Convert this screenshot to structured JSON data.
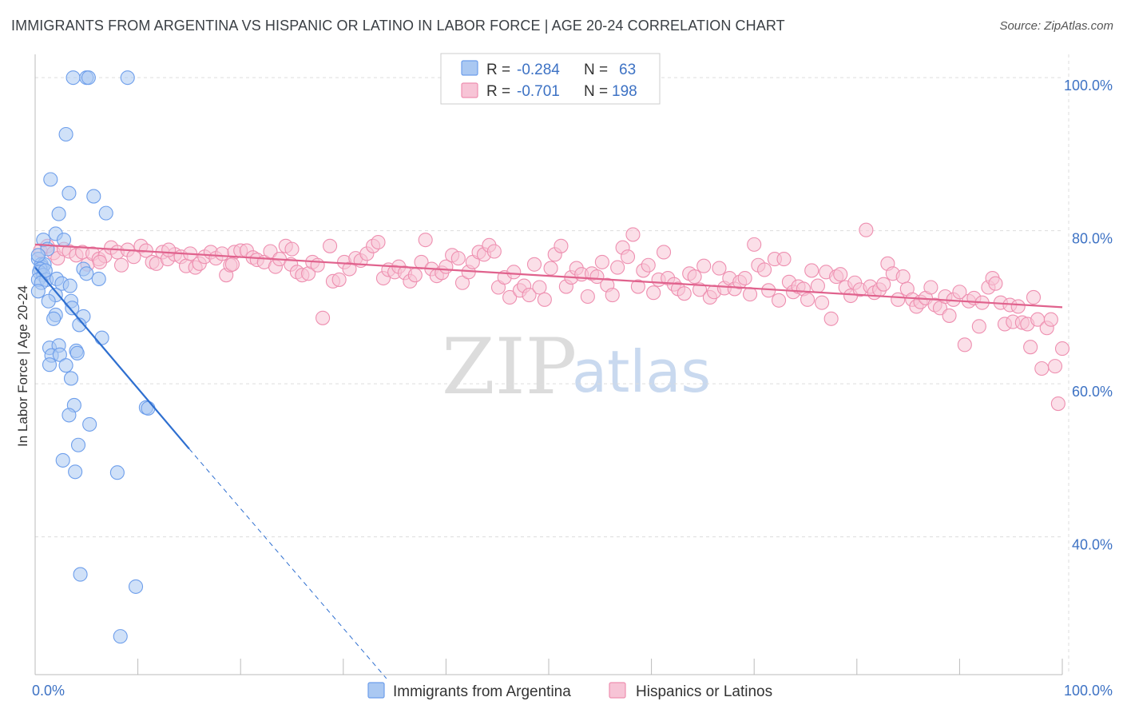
{
  "title": "IMMIGRANTS FROM ARGENTINA VS HISPANIC OR LATINO IN LABOR FORCE | AGE 20-24 CORRELATION CHART",
  "source": "Source: ZipAtlas.com",
  "watermark": {
    "zip": "ZIP",
    "atlas": "atlas"
  },
  "chart_data": {
    "type": "scatter",
    "title": "IMMIGRANTS FROM ARGENTINA VS HISPANIC OR LATINO IN LABOR FORCE | AGE 20-24 CORRELATION CHART",
    "xlabel": "",
    "ylabel": "In Labor Force | Age 20-24",
    "xlim": [
      0,
      100
    ],
    "ylim": [
      22,
      102
    ],
    "x_tick_labels": [
      {
        "value": 0,
        "label": "0.0%"
      },
      {
        "value": 100,
        "label": "100.0%"
      }
    ],
    "y_tick_labels": [
      {
        "value": 100,
        "label": "100.0%"
      },
      {
        "value": 80,
        "label": "80.0%"
      },
      {
        "value": 60,
        "label": "60.0%"
      },
      {
        "value": 40,
        "label": "40.0%"
      }
    ],
    "grid": true,
    "legend_position": "top-center",
    "series": [
      {
        "name": "Immigrants from Argentina",
        "color": "#6d9eeb",
        "fill": "#aac8f2",
        "line_color": "#2e6fd0",
        "R": "-0.284",
        "N": "63",
        "trend": {
          "x": [
            0,
            15
          ],
          "y": [
            75.2,
            51.5
          ],
          "dashed_to": {
            "x": 34.2,
            "y": 21.5
          }
        },
        "points": [
          [
            3.7,
            100
          ],
          [
            5.0,
            100
          ],
          [
            5.2,
            100
          ],
          [
            9.0,
            100
          ],
          [
            3.0,
            92.6
          ],
          [
            1.5,
            86.7
          ],
          [
            3.3,
            84.9
          ],
          [
            5.7,
            84.5
          ],
          [
            2.3,
            82.2
          ],
          [
            6.9,
            82.3
          ],
          [
            2.0,
            79.6
          ],
          [
            0.8,
            78.8
          ],
          [
            2.8,
            78.8
          ],
          [
            1.2,
            77.6
          ],
          [
            0.3,
            76.3
          ],
          [
            0.6,
            75.6
          ],
          [
            0.7,
            75.2
          ],
          [
            0.9,
            75.6
          ],
          [
            0.5,
            75.0
          ],
          [
            0.4,
            74.6
          ],
          [
            0.8,
            74.2
          ],
          [
            0.3,
            73.6
          ],
          [
            1.1,
            73.6
          ],
          [
            2.1,
            73.7
          ],
          [
            4.7,
            75.0
          ],
          [
            5.0,
            74.4
          ],
          [
            0.6,
            73.2
          ],
          [
            2.6,
            73.1
          ],
          [
            6.2,
            73.7
          ],
          [
            0.3,
            72.1
          ],
          [
            3.4,
            72.8
          ],
          [
            2.0,
            71.6
          ],
          [
            1.3,
            70.8
          ],
          [
            3.5,
            70.8
          ],
          [
            3.6,
            69.9
          ],
          [
            2.0,
            69.0
          ],
          [
            4.7,
            68.8
          ],
          [
            1.8,
            68.5
          ],
          [
            4.3,
            67.7
          ],
          [
            6.5,
            66.0
          ],
          [
            1.4,
            64.7
          ],
          [
            2.3,
            65.0
          ],
          [
            4.0,
            64.3
          ],
          [
            4.1,
            64.0
          ],
          [
            1.6,
            63.7
          ],
          [
            2.4,
            63.8
          ],
          [
            1.4,
            62.5
          ],
          [
            3.0,
            62.4
          ],
          [
            3.5,
            60.7
          ],
          [
            3.8,
            57.2
          ],
          [
            10.8,
            56.9
          ],
          [
            11.0,
            56.8
          ],
          [
            3.3,
            55.9
          ],
          [
            5.3,
            54.7
          ],
          [
            4.2,
            52.0
          ],
          [
            2.7,
            50.0
          ],
          [
            3.9,
            48.5
          ],
          [
            8.0,
            48.4
          ],
          [
            4.4,
            35.1
          ],
          [
            9.8,
            33.5
          ],
          [
            8.3,
            27.0
          ],
          [
            0.3,
            76.8
          ],
          [
            1.0,
            74.8
          ]
        ]
      },
      {
        "name": "Hispanics or Latinos",
        "color": "#ee8fb0",
        "fill": "#f7c4d6",
        "line_color": "#e0628d",
        "R": "-0.701",
        "N": "198",
        "trend": {
          "x": [
            0,
            100
          ],
          "y": [
            78.2,
            70.0
          ]
        },
        "points": [
          [
            0.5,
            77.4
          ],
          [
            1.2,
            78.0
          ],
          [
            1.8,
            77.1
          ],
          [
            2.2,
            76.4
          ],
          [
            2.8,
            77.6
          ],
          [
            3.3,
            77.3
          ],
          [
            4.0,
            76.8
          ],
          [
            4.6,
            77.2
          ],
          [
            5.1,
            75.6
          ],
          [
            5.6,
            77.0
          ],
          [
            6.2,
            76.3
          ],
          [
            6.8,
            76.7
          ],
          [
            7.4,
            77.8
          ],
          [
            8.0,
            77.2
          ],
          [
            8.4,
            75.5
          ],
          [
            9.0,
            77.5
          ],
          [
            9.6,
            76.6
          ],
          [
            10.3,
            78.0
          ],
          [
            10.8,
            77.4
          ],
          [
            11.4,
            75.9
          ],
          [
            11.8,
            75.7
          ],
          [
            12.4,
            77.2
          ],
          [
            12.9,
            76.3
          ],
          [
            13.6,
            76.9
          ],
          [
            14.2,
            76.6
          ],
          [
            14.7,
            75.4
          ],
          [
            15.1,
            77.0
          ],
          [
            15.6,
            75.2
          ],
          [
            16.0,
            75.7
          ],
          [
            16.5,
            76.6
          ],
          [
            17.1,
            77.2
          ],
          [
            17.6,
            76.4
          ],
          [
            18.2,
            77.0
          ],
          [
            18.6,
            74.2
          ],
          [
            19.0,
            75.5
          ],
          [
            19.4,
            77.2
          ],
          [
            20.0,
            77.4
          ],
          [
            20.6,
            77.4
          ],
          [
            21.2,
            76.5
          ],
          [
            21.6,
            76.2
          ],
          [
            22.3,
            75.9
          ],
          [
            22.9,
            77.3
          ],
          [
            23.4,
            75.3
          ],
          [
            23.8,
            76.3
          ],
          [
            24.4,
            78.0
          ],
          [
            24.9,
            75.6
          ],
          [
            25.5,
            74.6
          ],
          [
            26.0,
            74.2
          ],
          [
            26.6,
            74.4
          ],
          [
            27.0,
            75.9
          ],
          [
            27.5,
            75.5
          ],
          [
            28.0,
            68.6
          ],
          [
            28.7,
            78.0
          ],
          [
            29.0,
            73.4
          ],
          [
            29.6,
            73.6
          ],
          [
            30.1,
            75.9
          ],
          [
            30.6,
            75.0
          ],
          [
            31.2,
            76.4
          ],
          [
            31.7,
            76.1
          ],
          [
            32.3,
            77.0
          ],
          [
            32.9,
            78.0
          ],
          [
            33.4,
            78.5
          ],
          [
            33.9,
            73.8
          ],
          [
            34.4,
            74.9
          ],
          [
            35.0,
            74.6
          ],
          [
            35.4,
            75.3
          ],
          [
            36.0,
            74.5
          ],
          [
            36.5,
            73.4
          ],
          [
            37.0,
            74.2
          ],
          [
            37.6,
            75.9
          ],
          [
            38.0,
            78.8
          ],
          [
            38.6,
            75.0
          ],
          [
            39.1,
            74.1
          ],
          [
            39.6,
            74.5
          ],
          [
            40.0,
            75.3
          ],
          [
            40.6,
            76.8
          ],
          [
            41.2,
            76.4
          ],
          [
            41.6,
            73.2
          ],
          [
            42.2,
            74.6
          ],
          [
            42.6,
            75.9
          ],
          [
            43.2,
            77.2
          ],
          [
            43.7,
            76.9
          ],
          [
            44.2,
            78.1
          ],
          [
            44.7,
            77.3
          ],
          [
            45.1,
            72.6
          ],
          [
            45.7,
            73.9
          ],
          [
            46.2,
            71.3
          ],
          [
            46.6,
            74.6
          ],
          [
            47.2,
            72.2
          ],
          [
            47.6,
            72.8
          ],
          [
            48.1,
            71.6
          ],
          [
            48.6,
            75.6
          ],
          [
            49.1,
            72.6
          ],
          [
            49.6,
            71.0
          ],
          [
            50.2,
            75.1
          ],
          [
            50.6,
            76.9
          ],
          [
            51.2,
            78.0
          ],
          [
            51.7,
            72.7
          ],
          [
            52.2,
            73.9
          ],
          [
            52.7,
            75.1
          ],
          [
            53.2,
            74.3
          ],
          [
            53.8,
            71.4
          ],
          [
            54.2,
            74.4
          ],
          [
            54.7,
            74.0
          ],
          [
            55.2,
            75.9
          ],
          [
            55.7,
            72.9
          ],
          [
            56.2,
            71.6
          ],
          [
            56.7,
            75.2
          ],
          [
            57.2,
            77.8
          ],
          [
            57.7,
            76.6
          ],
          [
            58.2,
            79.5
          ],
          [
            58.7,
            72.7
          ],
          [
            59.2,
            74.8
          ],
          [
            59.7,
            75.5
          ],
          [
            60.2,
            71.9
          ],
          [
            60.7,
            73.6
          ],
          [
            61.2,
            77.2
          ],
          [
            61.6,
            73.8
          ],
          [
            62.2,
            73.0
          ],
          [
            62.6,
            72.4
          ],
          [
            63.2,
            71.8
          ],
          [
            63.7,
            74.4
          ],
          [
            64.2,
            74.0
          ],
          [
            64.7,
            72.3
          ],
          [
            65.1,
            75.4
          ],
          [
            65.7,
            71.3
          ],
          [
            66.1,
            72.0
          ],
          [
            66.6,
            75.1
          ],
          [
            67.1,
            72.5
          ],
          [
            67.6,
            73.8
          ],
          [
            68.1,
            72.4
          ],
          [
            68.6,
            73.3
          ],
          [
            69.1,
            73.8
          ],
          [
            69.6,
            71.7
          ],
          [
            70.0,
            78.2
          ],
          [
            70.4,
            75.5
          ],
          [
            71.0,
            74.9
          ],
          [
            71.4,
            72.2
          ],
          [
            72.0,
            76.3
          ],
          [
            72.4,
            70.9
          ],
          [
            72.9,
            76.3
          ],
          [
            73.4,
            73.3
          ],
          [
            73.8,
            72.0
          ],
          [
            74.3,
            72.7
          ],
          [
            74.8,
            72.4
          ],
          [
            75.2,
            71.0
          ],
          [
            75.6,
            74.8
          ],
          [
            76.2,
            72.8
          ],
          [
            76.6,
            70.6
          ],
          [
            77.0,
            74.6
          ],
          [
            77.5,
            68.5
          ],
          [
            78.0,
            74.0
          ],
          [
            78.4,
            74.3
          ],
          [
            78.9,
            72.6
          ],
          [
            79.4,
            71.5
          ],
          [
            79.8,
            73.2
          ],
          [
            80.3,
            72.3
          ],
          [
            80.9,
            80.1
          ],
          [
            81.3,
            72.7
          ],
          [
            81.7,
            71.9
          ],
          [
            82.2,
            72.3
          ],
          [
            82.6,
            73.0
          ],
          [
            83.0,
            75.7
          ],
          [
            83.5,
            74.4
          ],
          [
            84.0,
            71.0
          ],
          [
            84.5,
            74.0
          ],
          [
            84.9,
            72.4
          ],
          [
            85.4,
            71.0
          ],
          [
            85.8,
            70.1
          ],
          [
            86.2,
            70.7
          ],
          [
            86.7,
            71.2
          ],
          [
            87.2,
            72.6
          ],
          [
            87.6,
            70.3
          ],
          [
            88.1,
            69.9
          ],
          [
            88.6,
            71.4
          ],
          [
            89.0,
            68.9
          ],
          [
            89.4,
            71.0
          ],
          [
            90.0,
            72.0
          ],
          [
            90.5,
            65.1
          ],
          [
            90.9,
            70.8
          ],
          [
            91.4,
            71.2
          ],
          [
            91.9,
            67.5
          ],
          [
            92.2,
            70.6
          ],
          [
            92.8,
            72.6
          ],
          [
            93.2,
            73.8
          ],
          [
            93.5,
            73.1
          ],
          [
            94.0,
            70.6
          ],
          [
            94.4,
            67.8
          ],
          [
            94.9,
            70.3
          ],
          [
            95.2,
            68.1
          ],
          [
            95.7,
            70.1
          ],
          [
            96.1,
            68.0
          ],
          [
            96.6,
            67.8
          ],
          [
            96.9,
            64.8
          ],
          [
            97.2,
            71.3
          ],
          [
            97.6,
            68.4
          ],
          [
            98.0,
            62.0
          ],
          [
            98.5,
            67.3
          ],
          [
            98.9,
            68.4
          ],
          [
            99.3,
            62.3
          ],
          [
            99.6,
            57.4
          ],
          [
            100.0,
            64.6
          ],
          [
            6.3,
            75.9
          ],
          [
            13.0,
            77.5
          ],
          [
            19.2,
            75.6
          ],
          [
            25.0,
            77.6
          ]
        ]
      }
    ]
  }
}
